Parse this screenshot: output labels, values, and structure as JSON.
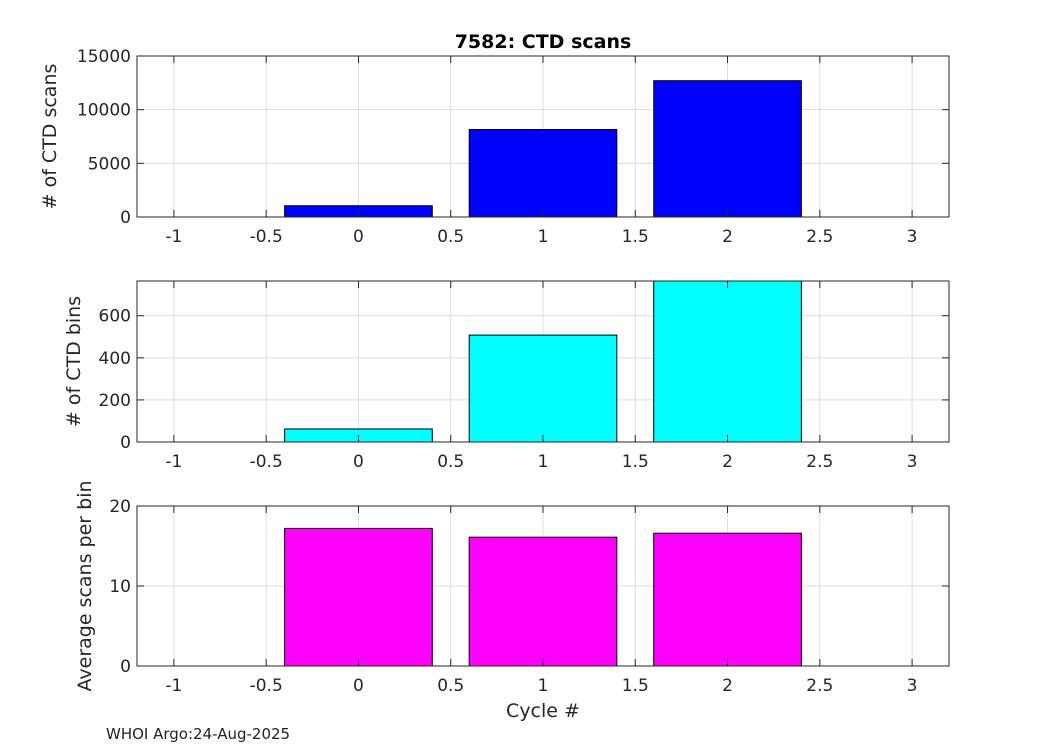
{
  "title": "7582: CTD scans",
  "xlabel": "Cycle #",
  "footer": "WHOI Argo:24-Aug-2025",
  "chart_data": [
    {
      "type": "bar",
      "title": "7582: CTD scans",
      "xlabel": "",
      "ylabel": "# of CTD scans",
      "x": [
        0,
        1,
        2
      ],
      "values": [
        1050,
        8150,
        12700
      ],
      "bar_width": 0.8,
      "color": "#0000ff",
      "xlim": [
        -1.2,
        3.2
      ],
      "ylim": [
        0,
        15000
      ],
      "xticks": [
        -1,
        -0.5,
        0,
        0.5,
        1,
        1.5,
        2,
        2.5,
        3
      ],
      "xtick_labels": [
        "-1",
        "-0.5",
        "0",
        "0.5",
        "1",
        "1.5",
        "2",
        "2.5",
        "3"
      ],
      "yticks": [
        0,
        5000,
        10000,
        15000
      ],
      "ytick_labels": [
        "0",
        "5000",
        "10000",
        "15000"
      ],
      "grid": true
    },
    {
      "type": "bar",
      "title": "",
      "xlabel": "",
      "ylabel": "# of CTD bins",
      "x": [
        0,
        1,
        2
      ],
      "values": [
        62,
        508,
        765
      ],
      "bar_width": 0.8,
      "color": "#00ffff",
      "xlim": [
        -1.2,
        3.2
      ],
      "ylim": [
        0,
        765
      ],
      "xticks": [
        -1,
        -0.5,
        0,
        0.5,
        1,
        1.5,
        2,
        2.5,
        3
      ],
      "xtick_labels": [
        "-1",
        "-0.5",
        "0",
        "0.5",
        "1",
        "1.5",
        "2",
        "2.5",
        "3"
      ],
      "yticks": [
        0,
        200,
        400,
        600
      ],
      "ytick_labels": [
        "0",
        "200",
        "400",
        "600"
      ],
      "grid": true
    },
    {
      "type": "bar",
      "title": "",
      "xlabel": "Cycle #",
      "ylabel": "Average scans per bin",
      "x": [
        0,
        1,
        2
      ],
      "values": [
        17.2,
        16.1,
        16.6
      ],
      "bar_width": 0.8,
      "color": "#ff00ff",
      "xlim": [
        -1.2,
        3.2
      ],
      "ylim": [
        0,
        20
      ],
      "xticks": [
        -1,
        -0.5,
        0,
        0.5,
        1,
        1.5,
        2,
        2.5,
        3
      ],
      "xtick_labels": [
        "-1",
        "-0.5",
        "0",
        "0.5",
        "1",
        "1.5",
        "2",
        "2.5",
        "3"
      ],
      "yticks": [
        0,
        10,
        20
      ],
      "ytick_labels": [
        "0",
        "10",
        "20"
      ],
      "grid": true
    }
  ]
}
